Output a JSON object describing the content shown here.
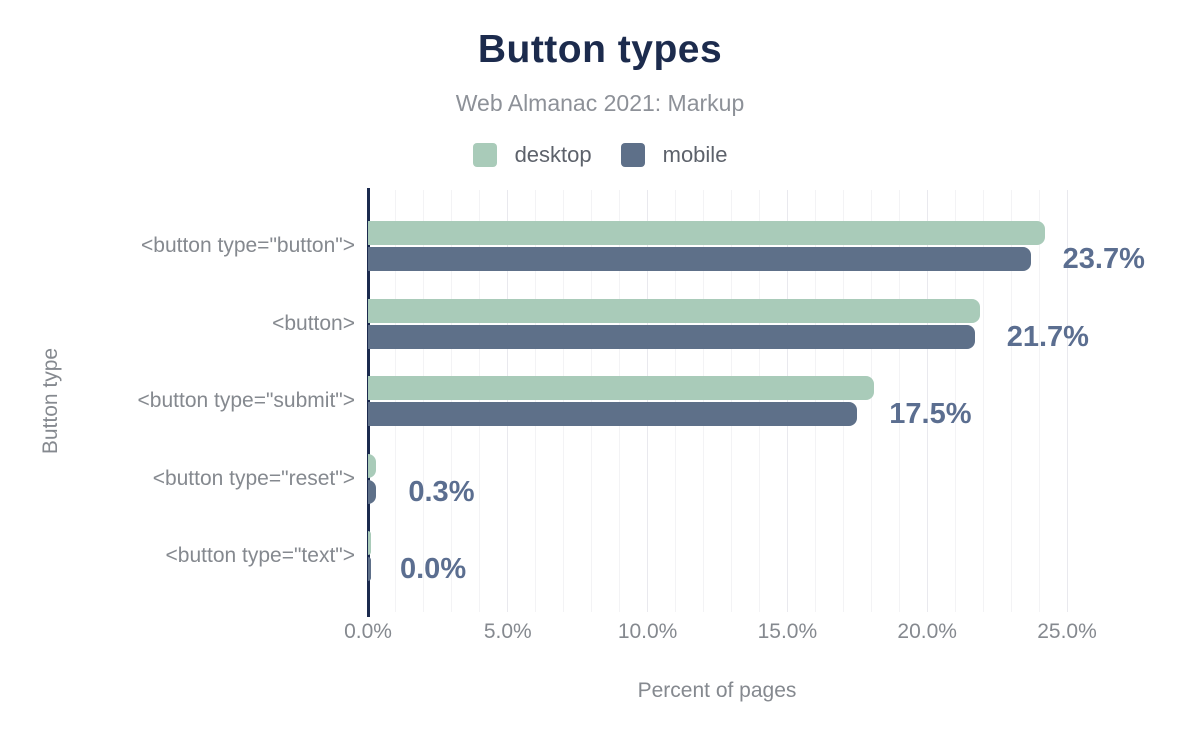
{
  "title": "Button types",
  "subtitle": "Web Almanac 2021: Markup",
  "x_axis_title": "Percent of pages",
  "y_axis_title": "Button type",
  "colors": {
    "desktop": "#a9cbb9",
    "mobile": "#5e7089",
    "axis": "#1b2a4e",
    "annotation_text": "#5b6e90",
    "label_text": "#85898f",
    "title_text": "#1c2b4d"
  },
  "legend": [
    {
      "label": "desktop",
      "color": "#a9cbb9"
    },
    {
      "label": "mobile",
      "color": "#5e7089"
    }
  ],
  "chart_data": {
    "type": "bar",
    "orientation": "horizontal",
    "title": "Button types",
    "subtitle": "Web Almanac 2021: Markup",
    "xlabel": "Percent of pages",
    "ylabel": "Button type",
    "xlim": [
      0,
      25
    ],
    "grid": "vertical, every 1%, major every 5%",
    "legend_position": "top",
    "categories": [
      "<button type=\"button\">",
      "<button>",
      "<button type=\"submit\">",
      "<button type=\"reset\">",
      "<button type=\"text\">"
    ],
    "series": [
      {
        "name": "desktop",
        "color": "#a9cbb9",
        "values": [
          24.2,
          21.9,
          18.1,
          0.3,
          0.0
        ]
      },
      {
        "name": "mobile",
        "color": "#5e7089",
        "values": [
          23.7,
          21.7,
          17.5,
          0.3,
          0.0
        ]
      }
    ],
    "annotations": [
      "23.7%",
      "21.7%",
      "17.5%",
      "0.3%",
      "0.0%"
    ],
    "x_ticks": [
      {
        "label": "0.0%",
        "value": 0
      },
      {
        "label": "5.0%",
        "value": 5
      },
      {
        "label": "10.0%",
        "value": 10
      },
      {
        "label": "15.0%",
        "value": 15
      },
      {
        "label": "20.0%",
        "value": 20
      },
      {
        "label": "25.0%",
        "value": 25
      }
    ]
  }
}
